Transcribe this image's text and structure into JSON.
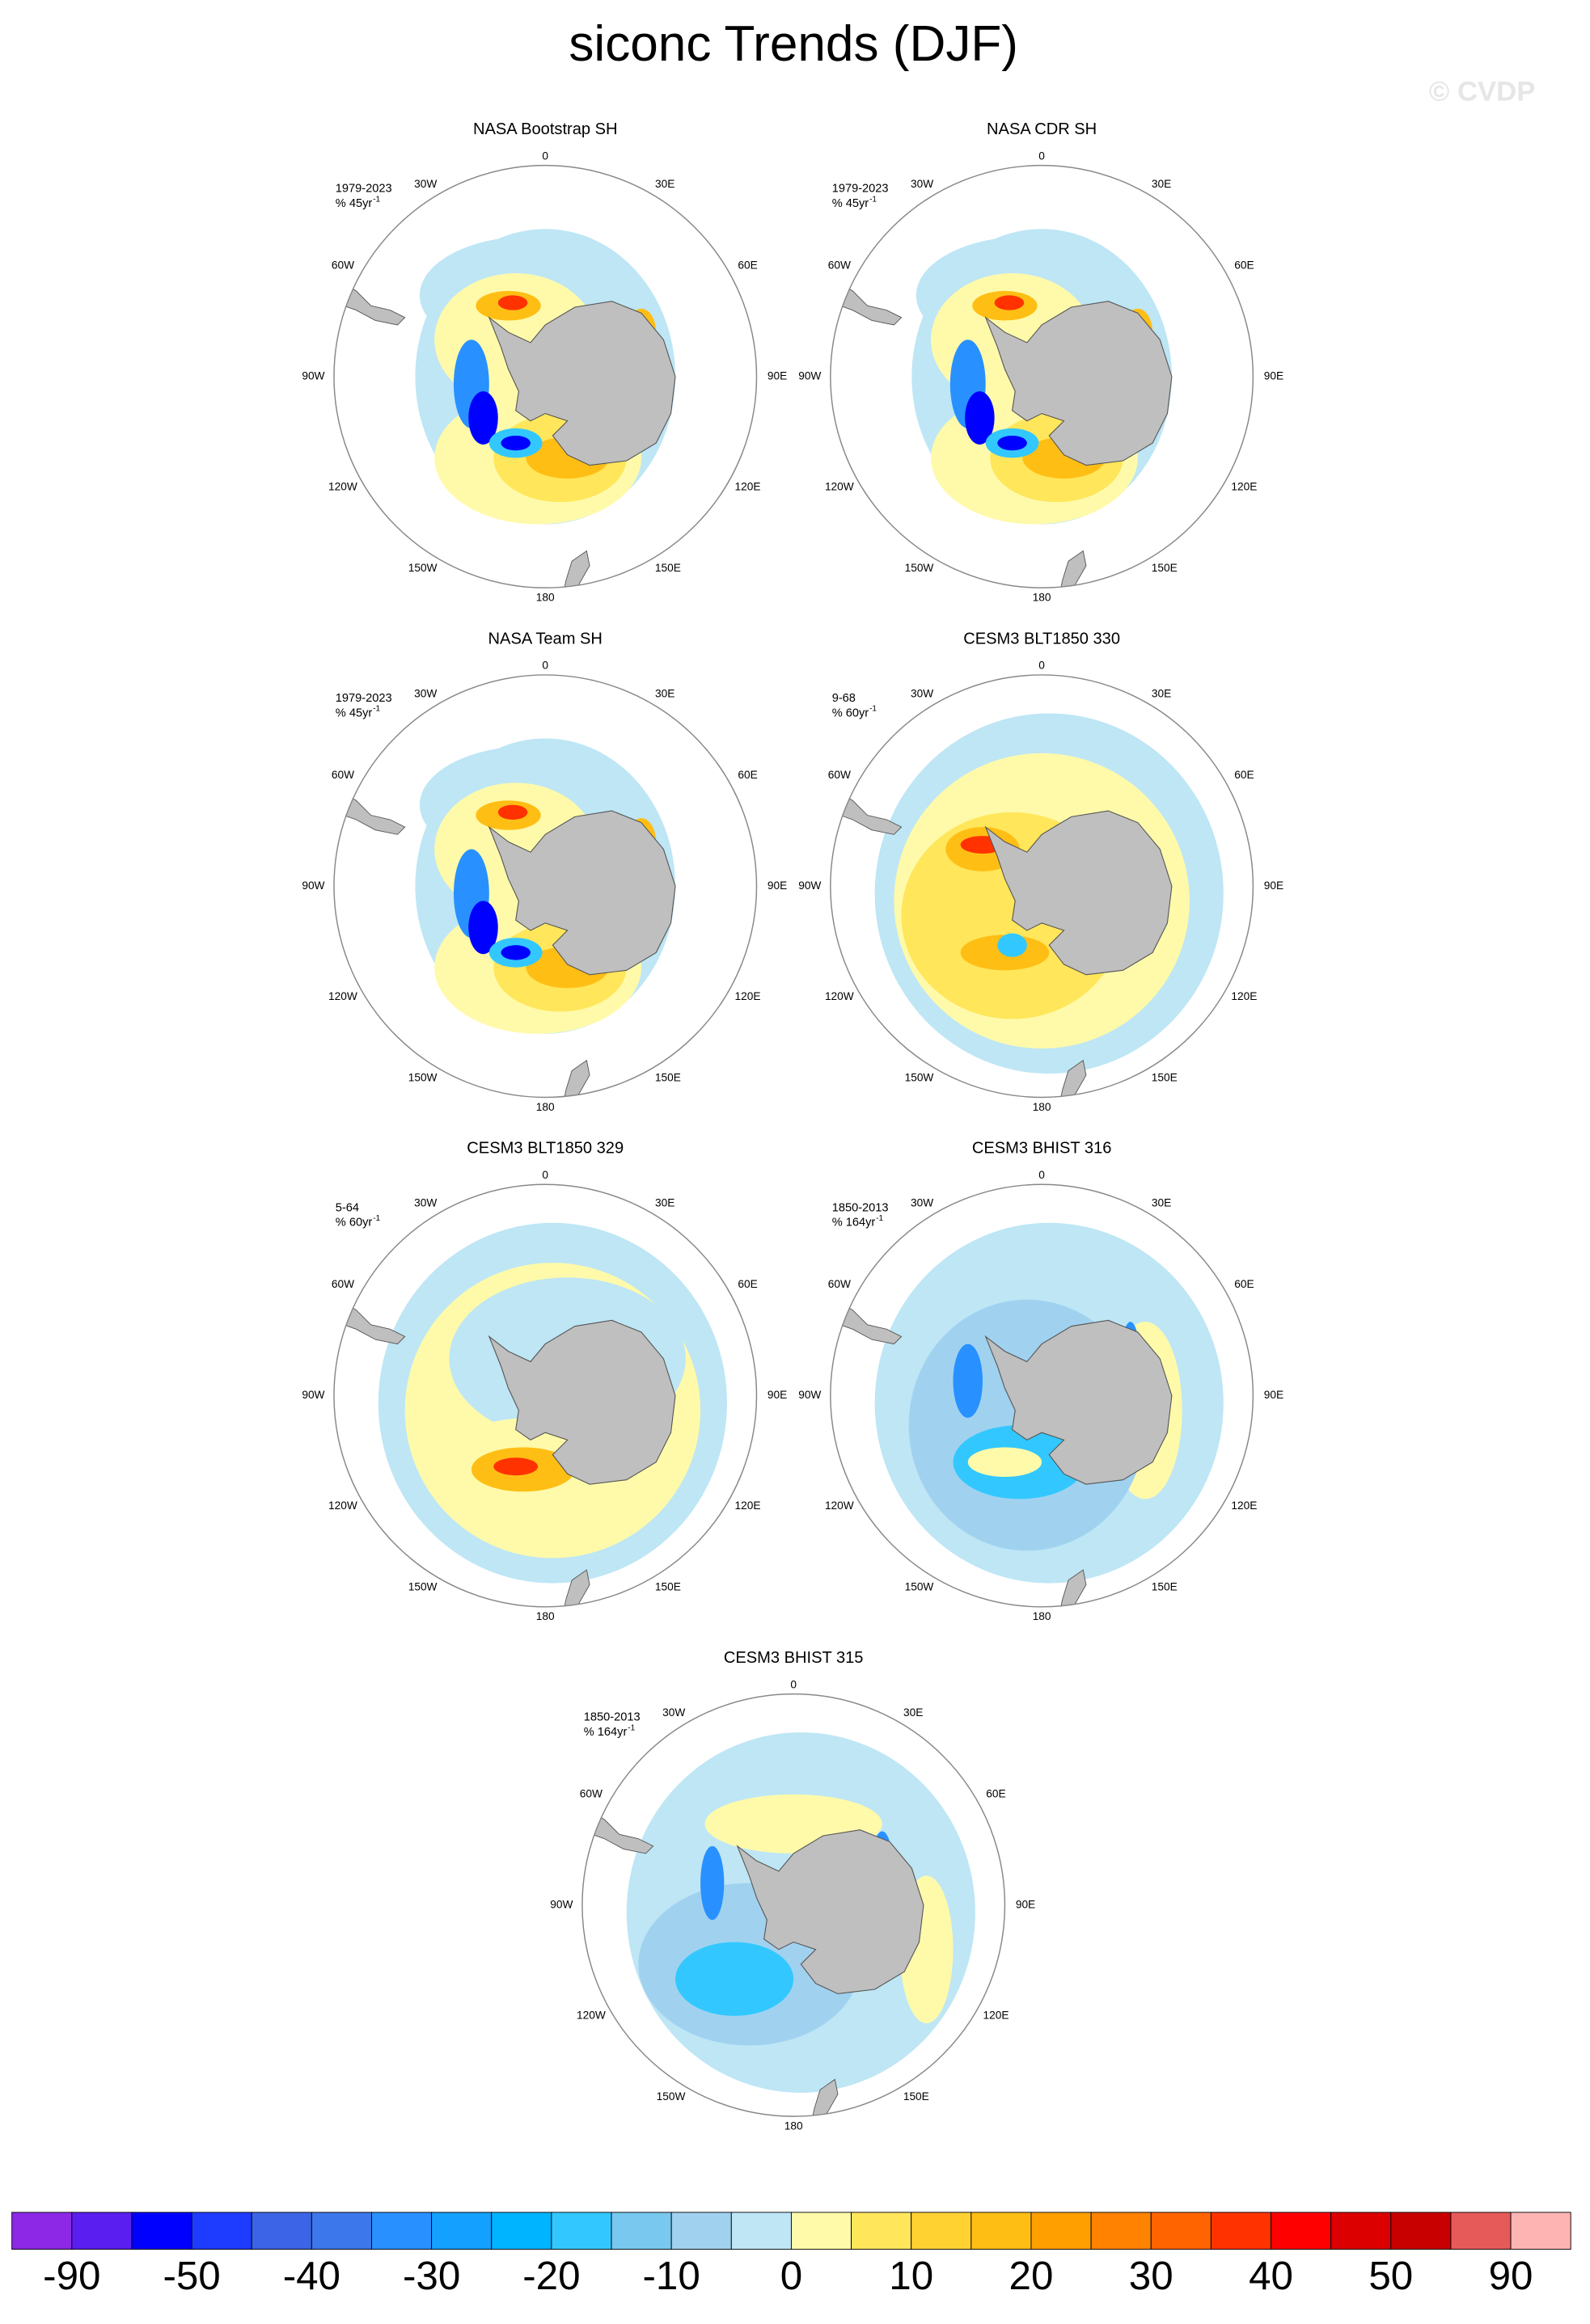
{
  "title": "siconc Trends (DJF)",
  "watermark": "© CVDP",
  "lon_labels": [
    "0",
    "30E",
    "60E",
    "90E",
    "120E",
    "150E",
    "180",
    "150W",
    "120W",
    "90W",
    "60W",
    "30W"
  ],
  "panels": [
    {
      "title": "NASA Bootstrap SH",
      "period": "1979-2023",
      "units": "% 45yr",
      "units_exp": "-1"
    },
    {
      "title": "NASA CDR SH",
      "period": "1979-2023",
      "units": "% 45yr",
      "units_exp": "-1"
    },
    {
      "title": "NASA Team SH",
      "period": "1979-2023",
      "units": "% 45yr",
      "units_exp": "-1"
    },
    {
      "title": "CESM3 BLT1850 330",
      "period": "9-68",
      "units": "% 60yr",
      "units_exp": "-1"
    },
    {
      "title": "CESM3 BLT1850 329",
      "period": "5-64",
      "units": "% 60yr",
      "units_exp": "-1"
    },
    {
      "title": "CESM3 BHIST 316",
      "period": "1850-2013",
      "units": "% 164yr",
      "units_exp": "-1"
    },
    {
      "title": "CESM3 BHIST 315",
      "period": "1850-2013",
      "units": "% 164yr",
      "units_exp": "-1"
    }
  ],
  "colorbar": {
    "colors": [
      "#8c28e6",
      "#5a1ef0",
      "#0000ff",
      "#1e3cff",
      "#3c64e6",
      "#3c78eb",
      "#2891ff",
      "#14a0ff",
      "#00b4ff",
      "#32c8ff",
      "#78c8f0",
      "#a0d2f0",
      "#bee6f5",
      "#fffaaa",
      "#ffe65a",
      "#ffd232",
      "#ffbe14",
      "#ffa000",
      "#ff8200",
      "#ff6400",
      "#ff3200",
      "#ff0000",
      "#dc0000",
      "#c80000",
      "#e65a5a",
      "#ffb4b4"
    ],
    "labels": [
      -90,
      -50,
      -40,
      -30,
      -20,
      -10,
      0,
      10,
      20,
      30,
      40,
      50,
      90
    ]
  }
}
